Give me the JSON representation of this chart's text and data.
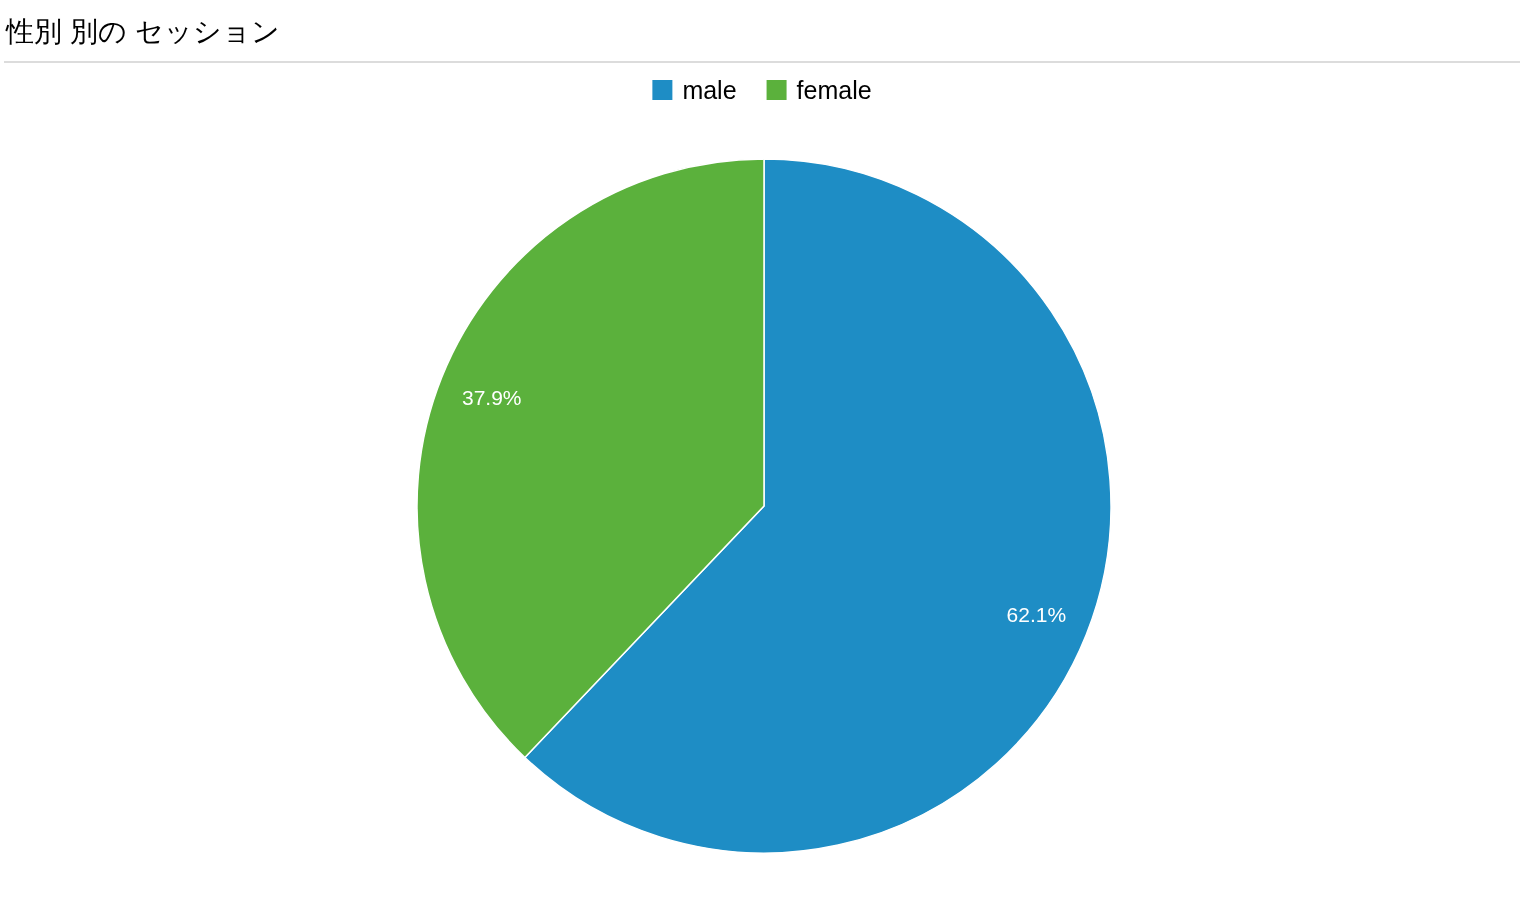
{
  "chart_data": {
    "type": "pie",
    "title": "性別 別の セッション",
    "categories": [
      "male",
      "female"
    ],
    "values": [
      62.1,
      37.9
    ],
    "colors": [
      "#1e8dc5",
      "#5bb13c"
    ],
    "value_labels": [
      "62.1%",
      "37.9%"
    ],
    "legend": "top"
  }
}
